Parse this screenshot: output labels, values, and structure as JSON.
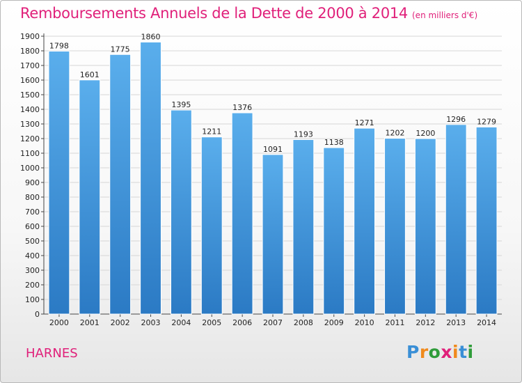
{
  "title": "Remboursements Annuels de la Dette de 2000 à 2014",
  "subtitle": "(en milliers d'€)",
  "place": "HARNES",
  "logo": {
    "letters": [
      "P",
      "r",
      "o",
      "x",
      "i",
      "t",
      "i"
    ],
    "colors": [
      "#3a8fd6",
      "#f08a1c",
      "#2f9c3a",
      "#e0207a",
      "#f08a1c",
      "#3a8fd6",
      "#2f9c3a"
    ]
  },
  "colors": {
    "bar_top": "#5aaeec",
    "bar_bottom": "#2b7ac4",
    "accent": "#e0207a",
    "grid": "#d6d6d6"
  },
  "chart_data": {
    "type": "bar",
    "title": "Remboursements Annuels de la Dette de 2000 à 2014",
    "subtitle": "(en milliers d'€)",
    "categories": [
      "2000",
      "2001",
      "2002",
      "2003",
      "2004",
      "2005",
      "2006",
      "2007",
      "2008",
      "2009",
      "2010",
      "2011",
      "2012",
      "2013",
      "2014"
    ],
    "values": [
      1798,
      1601,
      1775,
      1860,
      1395,
      1211,
      1376,
      1091,
      1193,
      1138,
      1271,
      1202,
      1200,
      1296,
      1279
    ],
    "ylim": [
      0,
      1900
    ],
    "ytick_step": 100,
    "grid": true,
    "legend": "none"
  }
}
